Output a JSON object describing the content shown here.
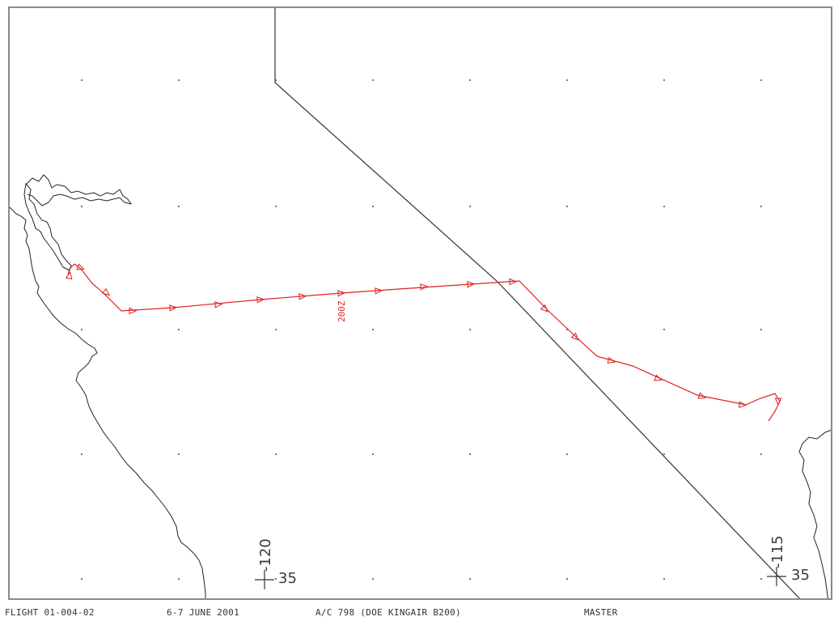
{
  "footer": {
    "flight": "FLIGHT 01-004-02",
    "date": "6-7 JUNE 2001",
    "aircraft": "A/C 798 (DOE KINGAIR B200)",
    "mode": "MASTER"
  },
  "map": {
    "graticule": [
      {
        "lon": "-120",
        "lat": "35"
      },
      {
        "lon": "-115",
        "lat": "35"
      }
    ],
    "track_label": "200Z",
    "track_color": "#e02020",
    "boundary_color": "#333333",
    "coast_color": "#222222"
  }
}
